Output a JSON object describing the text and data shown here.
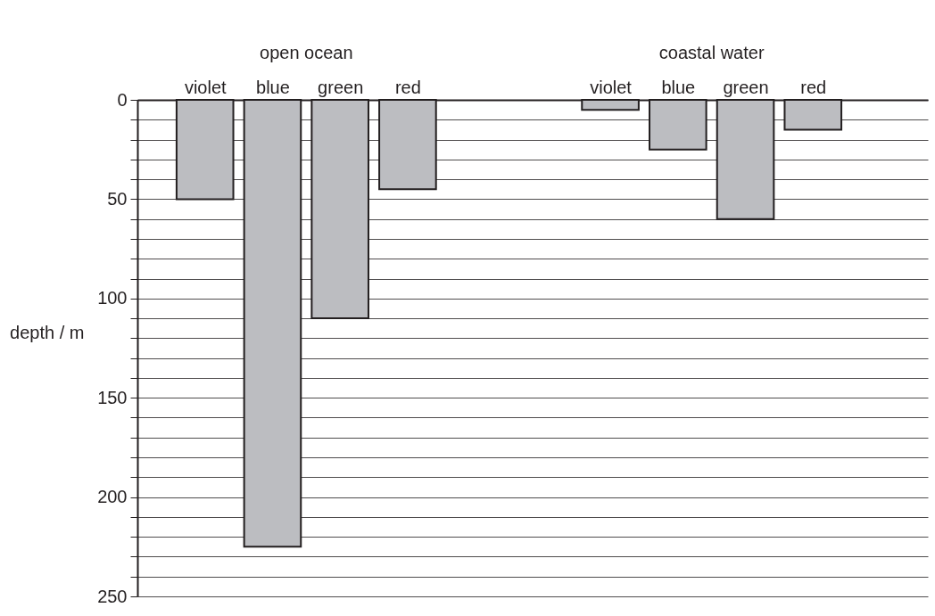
{
  "chart_data": {
    "type": "bar",
    "ylabel": "depth / m",
    "categories": [
      "violet",
      "blue",
      "green",
      "red",
      "violet",
      "blue",
      "green",
      "red"
    ],
    "values": [
      50,
      225,
      110,
      45,
      5,
      25,
      60,
      15
    ],
    "color": "#bcbdc1",
    "annotations": [
      "open ocean",
      "coastal water"
    ],
    "ylim": [
      250,
      0
    ],
    "yticks": [
      0,
      {
        "value": 10,
        "label": null
      },
      {
        "value": 20,
        "label": null
      },
      {
        "value": 30,
        "label": null
      },
      {
        "value": 40,
        "label": null
      },
      50,
      {
        "value": 60,
        "label": null
      },
      {
        "value": 70,
        "label": null
      },
      {
        "value": 80,
        "label": null
      },
      {
        "value": 90,
        "label": null
      },
      100,
      {
        "value": 110,
        "label": null
      },
      {
        "value": 120,
        "label": null
      },
      {
        "value": 130,
        "label": null
      },
      {
        "value": 140,
        "label": null
      },
      150,
      {
        "value": 160,
        "label": null
      },
      {
        "value": 170,
        "label": null
      },
      {
        "value": 180,
        "label": null
      },
      {
        "value": 190,
        "label": null
      },
      200,
      {
        "value": 210,
        "label": null
      },
      {
        "value": 220,
        "label": null
      },
      {
        "value": 230,
        "label": null
      },
      {
        "value": 240,
        "label": null
      },
      250
    ],
    "grid": true
  }
}
